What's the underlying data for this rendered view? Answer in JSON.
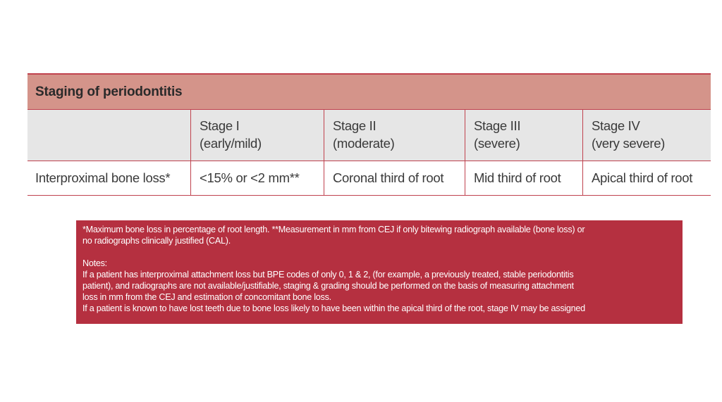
{
  "table": {
    "title": "Staging of periodontitis",
    "columns": [
      {
        "line1": "",
        "line2": ""
      },
      {
        "line1": "Stage I",
        "line2": "(early/mild)"
      },
      {
        "line1": "Stage II",
        "line2": "(moderate)"
      },
      {
        "line1": "Stage III",
        "line2": "(severe)"
      },
      {
        "line1": "Stage IV",
        "line2": "(very severe)"
      }
    ],
    "rows": [
      [
        "Interproximal bone loss*",
        "<15% or <2 mm**",
        "Coronal third of root",
        "Mid third of root",
        "Apical third of root"
      ]
    ]
  },
  "notes": {
    "footnote_lines": [
      "*Maximum bone loss in percentage of root length. **Measurement in mm from CEJ if only bitewing radiograph available (bone loss) or",
      "no radiographs clinically justified (CAL)."
    ],
    "heading": "Notes:",
    "lines": [
      "If a patient has interproximal attachment loss but BPE codes of only 0, 1 & 2, (for example, a previously treated, stable periodontitis",
      "patient), and radiographs are not available/justifiable, staging & grading should be performed on the basis of measuring attachment",
      "loss in mm from the CEJ and estimation of concomitant bone loss.",
      "If a patient is known to have lost teeth due to bone loss likely to have been within the apical third of the root, stage IV may be assigned"
    ]
  },
  "colors": {
    "header": "#d4948a",
    "subheader": "#e6e6e6",
    "rule": "#c0424e",
    "notes_bg": "#b53040"
  }
}
